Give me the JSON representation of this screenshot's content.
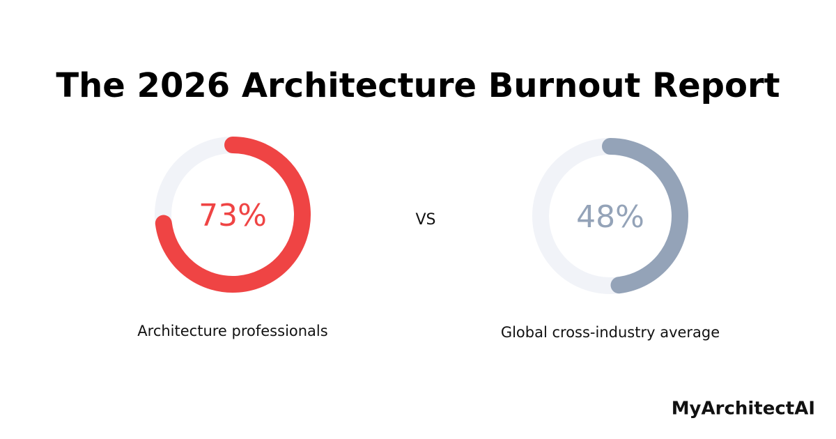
{
  "title": "The 2026 Architecture Burnout Report",
  "vs_label": "VS",
  "brand": "MyArchitectAI",
  "chart_data": [
    {
      "type": "donut",
      "categories": [
        "Architecture professionals"
      ],
      "values": [
        73
      ],
      "value_labels": [
        "73%"
      ],
      "color": "#ef4444",
      "track_color": "#f1f3f8",
      "ylim": [
        0,
        100
      ]
    },
    {
      "type": "donut",
      "categories": [
        "Global cross-industry average"
      ],
      "values": [
        48
      ],
      "value_labels": [
        "48%"
      ],
      "color": "#94a3b8",
      "track_color": "#f1f3f8",
      "ylim": [
        0,
        100
      ]
    }
  ]
}
